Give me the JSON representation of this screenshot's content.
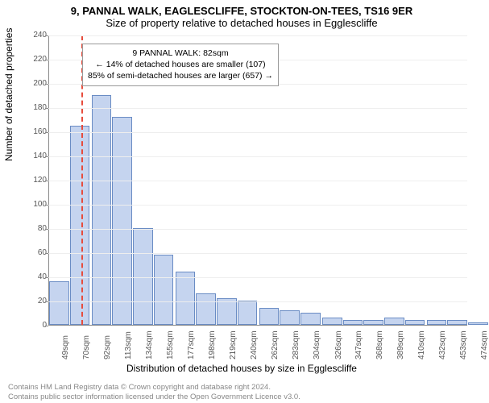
{
  "title": "9, PANNAL WALK, EAGLESCLIFFE, STOCKTON-ON-TEES, TS16 9ER",
  "subtitle": "Size of property relative to detached houses in Egglescliffe",
  "ylabel": "Number of detached properties",
  "xlabel": "Distribution of detached houses by size in Egglescliffe",
  "footer1": "Contains HM Land Registry data © Crown copyright and database right 2024.",
  "footer2": "Contains public sector information licensed under the Open Government Licence v3.0.",
  "chart": {
    "type": "bar",
    "xlim": [
      49,
      474
    ],
    "ylim": [
      0,
      240
    ],
    "ytick_step": 20,
    "xtick_step": 21.3,
    "xtick_label_suffix": "sqm",
    "bar_color": "#c5d4ef",
    "bar_border": "#6a8cc4",
    "grid_color": "#eeeeee",
    "axis_color": "#888888",
    "vline_x": 82,
    "vline_color": "#e74c3c",
    "xticks": [
      49,
      70,
      92,
      113,
      134,
      155,
      177,
      198,
      219,
      240,
      262,
      283,
      304,
      326,
      347,
      368,
      389,
      410,
      432,
      453,
      474
    ],
    "bars": [
      {
        "x": 49,
        "h": 36
      },
      {
        "x": 70,
        "h": 165
      },
      {
        "x": 92,
        "h": 190
      },
      {
        "x": 113,
        "h": 172
      },
      {
        "x": 134,
        "h": 80
      },
      {
        "x": 155,
        "h": 58
      },
      {
        "x": 177,
        "h": 44
      },
      {
        "x": 198,
        "h": 26
      },
      {
        "x": 219,
        "h": 22
      },
      {
        "x": 240,
        "h": 20
      },
      {
        "x": 262,
        "h": 14
      },
      {
        "x": 283,
        "h": 12
      },
      {
        "x": 304,
        "h": 10
      },
      {
        "x": 326,
        "h": 6
      },
      {
        "x": 347,
        "h": 4
      },
      {
        "x": 368,
        "h": 4
      },
      {
        "x": 389,
        "h": 6
      },
      {
        "x": 410,
        "h": 4
      },
      {
        "x": 432,
        "h": 4
      },
      {
        "x": 453,
        "h": 4
      },
      {
        "x": 474,
        "h": 2
      }
    ]
  },
  "annotation": {
    "line1": "9 PANNAL WALK: 82sqm",
    "line2": "← 14% of detached houses are smaller (107)",
    "line3": "85% of semi-detached houses are larger (657) →"
  }
}
